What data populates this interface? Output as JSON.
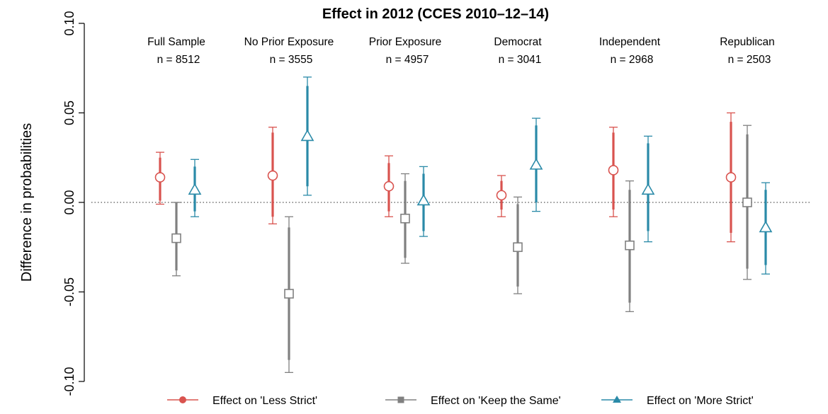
{
  "chart_data": {
    "type": "errorbar",
    "title": "Effect in 2012 (CCES 2010–12–14)",
    "ylabel": "Difference in probabilities",
    "ylim": [
      -0.1,
      0.1
    ],
    "yticks": [
      "0.10",
      "0.05",
      "0.00",
      "-0.05",
      "-0.10"
    ],
    "reference_line": 0.0,
    "groups": [
      {
        "name": "Full Sample",
        "n_label": "n =  8512"
      },
      {
        "name": "No Prior Exposure",
        "n_label": "n =  3555"
      },
      {
        "name": "Prior Exposure",
        "n_label": "n =  4957"
      },
      {
        "name": "Democrat",
        "n_label": "n =  3041"
      },
      {
        "name": "Independent",
        "n_label": "n =  2968"
      },
      {
        "name": "Republican",
        "n_label": "n =  2503"
      }
    ],
    "series": [
      {
        "name": "Effect on 'Less Strict'",
        "color": "#d9534f",
        "marker": "circle",
        "estimate": [
          0.014,
          0.015,
          0.009,
          0.004,
          0.018,
          0.014
        ],
        "ci90": [
          [
            0.001,
            0.025
          ],
          [
            -0.008,
            0.039
          ],
          [
            -0.005,
            0.022
          ],
          [
            -0.004,
            0.012
          ],
          [
            -0.004,
            0.039
          ],
          [
            -0.017,
            0.045
          ]
        ],
        "ci95": [
          [
            -0.001,
            0.028
          ],
          [
            -0.012,
            0.042
          ],
          [
            -0.008,
            0.026
          ],
          [
            -0.008,
            0.015
          ],
          [
            -0.008,
            0.042
          ],
          [
            -0.022,
            0.05
          ]
        ]
      },
      {
        "name": "Effect on 'Keep the Same'",
        "color": "#808080",
        "marker": "square",
        "estimate": [
          -0.02,
          -0.051,
          -0.009,
          -0.025,
          -0.024,
          0.0
        ],
        "ci90": [
          [
            -0.038,
            0.0
          ],
          [
            -0.088,
            -0.014
          ],
          [
            -0.031,
            0.012
          ],
          [
            -0.047,
            -0.001
          ],
          [
            -0.056,
            0.007
          ],
          [
            -0.037,
            0.038
          ]
        ],
        "ci95": [
          [
            -0.041,
            0.0
          ],
          [
            -0.095,
            -0.008
          ],
          [
            -0.034,
            0.016
          ],
          [
            -0.051,
            0.003
          ],
          [
            -0.061,
            0.012
          ],
          [
            -0.043,
            0.043
          ]
        ]
      },
      {
        "name": "Effect on 'More Strict'",
        "color": "#2a8aa8",
        "marker": "triangle",
        "estimate": [
          0.007,
          0.037,
          0.001,
          0.021,
          0.007,
          -0.014
        ],
        "ci90": [
          [
            -0.005,
            0.02
          ],
          [
            0.009,
            0.065
          ],
          [
            -0.016,
            0.016
          ],
          [
            0.0,
            0.043
          ],
          [
            -0.016,
            0.033
          ],
          [
            -0.035,
            0.007
          ]
        ],
        "ci95": [
          [
            -0.008,
            0.024
          ],
          [
            0.004,
            0.07
          ],
          [
            -0.019,
            0.02
          ],
          [
            -0.005,
            0.047
          ],
          [
            -0.022,
            0.037
          ],
          [
            -0.04,
            0.011
          ]
        ]
      }
    ],
    "legend_position": "bottom"
  }
}
